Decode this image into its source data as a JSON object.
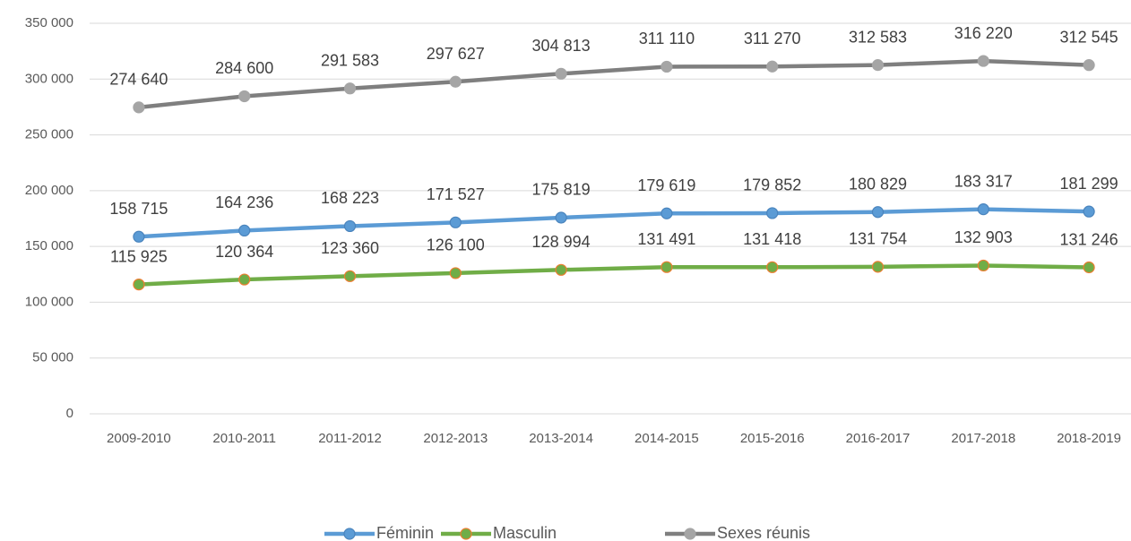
{
  "chart_data": {
    "type": "line",
    "categories": [
      "2009-2010",
      "2010-2011",
      "2011-2012",
      "2012-2013",
      "2013-2014",
      "2014-2015",
      "2015-2016",
      "2016-2017",
      "2017-2018",
      "2018-2019"
    ],
    "series": [
      {
        "name": "Féminin",
        "color": "#5b9bd5",
        "values": [
          158715,
          164236,
          168223,
          171527,
          175819,
          179619,
          179852,
          180829,
          183317,
          181299
        ],
        "value_labels": [
          "158 715",
          "164 236",
          "168 223",
          "171 527",
          "175 819",
          "179 619",
          "179 852",
          "180 829",
          "183 317",
          "181 299"
        ]
      },
      {
        "name": "Masculin",
        "color": "#70ad47",
        "values": [
          115925,
          120364,
          123360,
          126100,
          128994,
          131491,
          131418,
          131754,
          132903,
          131246
        ],
        "value_labels": [
          "115 925",
          "120 364",
          "123 360",
          "126 100",
          "128 994",
          "131 491",
          "131 418",
          "131 754",
          "132 903",
          "131 246"
        ]
      },
      {
        "name": "Sexes réunis",
        "color": "#7f7f7f",
        "values": [
          274640,
          284600,
          291583,
          297627,
          304813,
          311110,
          311270,
          312583,
          316220,
          312545
        ],
        "value_labels": [
          "274 640",
          "284 600",
          "291 583",
          "297 627",
          "304 813",
          "311 110",
          "311 270",
          "312 583",
          "316 220",
          "312 545"
        ]
      }
    ],
    "ylim": [
      0,
      350000
    ],
    "yticks": [
      0,
      {
        "value": 50000,
        "label": "50 000"
      },
      {
        "value": 100000,
        "label": "100 000"
      },
      {
        "value": 150000,
        "label": "150 000"
      },
      {
        "value": 200000,
        "label": "200 000"
      },
      {
        "value": 250000,
        "label": "250 000"
      },
      {
        "value": 300000,
        "label": "300 000"
      },
      {
        "value": 350000,
        "label": "350 000"
      }
    ],
    "grid": true,
    "legend": "bottom"
  }
}
